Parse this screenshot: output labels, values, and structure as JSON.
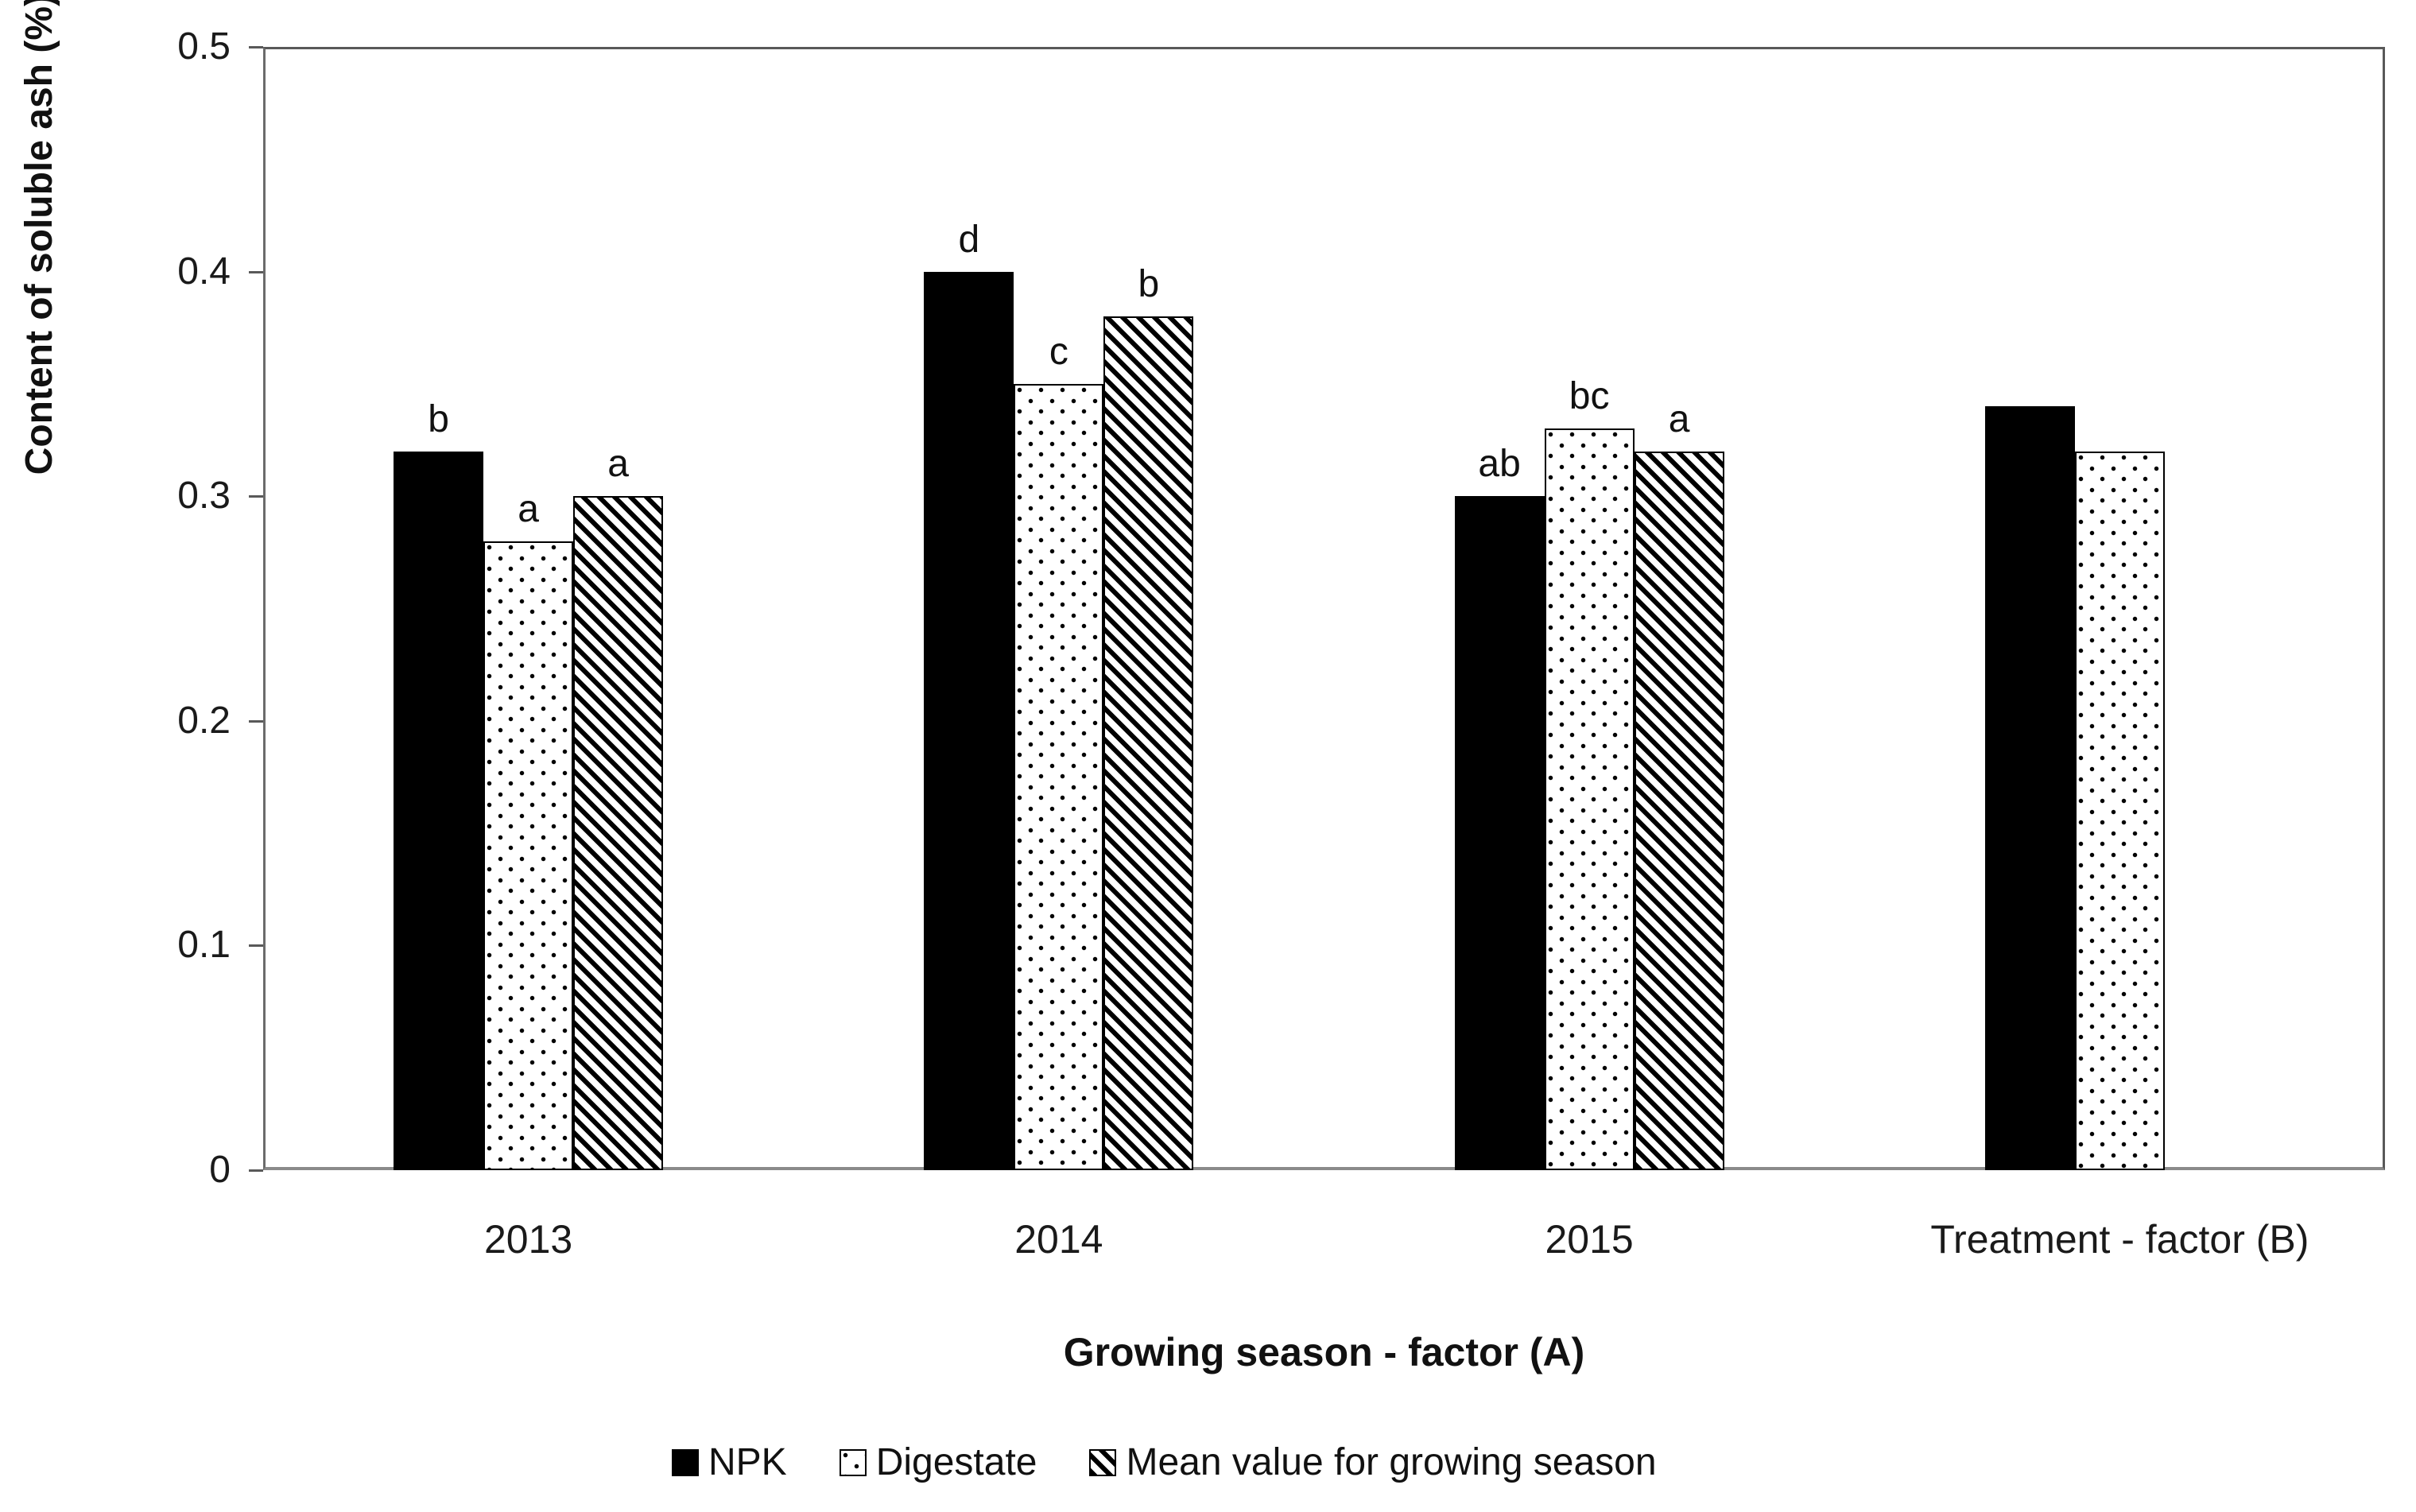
{
  "chart_data": {
    "type": "bar",
    "title": "",
    "categories": [
      "2013",
      "2014",
      "2015",
      "Treatment - factor (B)"
    ],
    "series": [
      {
        "name": "NPK",
        "pattern": "solid-black",
        "values": [
          0.32,
          0.4,
          0.3,
          0.34
        ],
        "sig_letters": [
          "b",
          "d",
          "ab",
          ""
        ]
      },
      {
        "name": "Digestate",
        "pattern": "dots",
        "values": [
          0.28,
          0.35,
          0.33,
          0.32
        ],
        "sig_letters": [
          "a",
          "c",
          "bc",
          ""
        ]
      },
      {
        "name": "Mean value for growing season",
        "pattern": "diagonal-stripes",
        "values": [
          0.3,
          0.38,
          0.32,
          null
        ],
        "sig_letters": [
          "a",
          "b",
          "a",
          ""
        ]
      }
    ],
    "xlabel": "Growing season - factor (A)",
    "ylabel": "Content of soluble ash  (%)",
    "ylim": [
      0,
      0.5
    ],
    "yticks": [
      0,
      0.1,
      0.2,
      0.3,
      0.4,
      0.5
    ],
    "ytick_labels": [
      "0",
      "0.1",
      "0.2",
      "0.3",
      "0.4",
      "0.5"
    ],
    "grid": false,
    "legend_position": "bottom"
  },
  "colors": {
    "bar_fill": "#000000",
    "axis_line": "#595959",
    "text": "#1a1a1a",
    "background": "#ffffff"
  }
}
